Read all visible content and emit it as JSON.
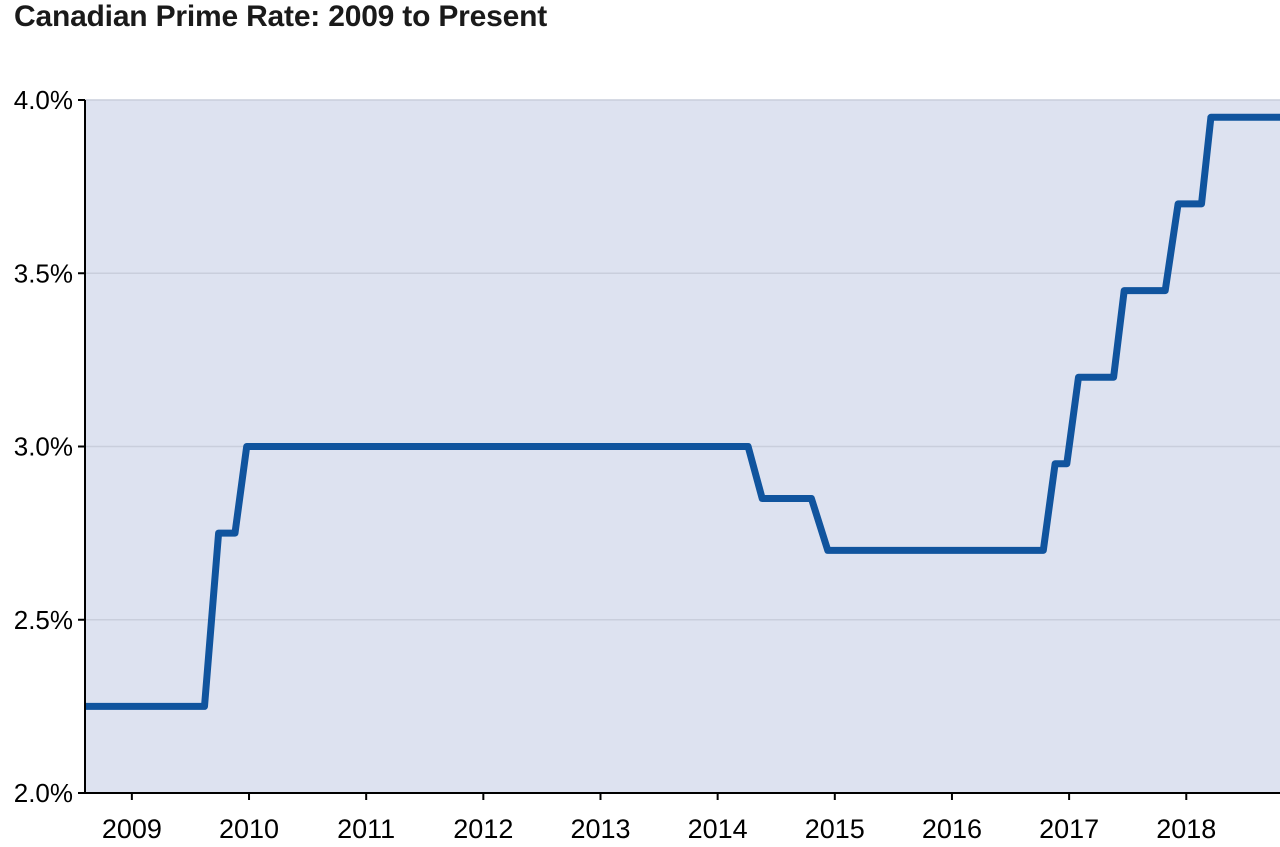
{
  "page": {
    "title": "Canadian Prime Rate: 2009 to Present"
  },
  "chart_data": {
    "type": "line",
    "title": "Canadian Prime Rate: 2009 to Present",
    "xlabel": "",
    "ylabel": "",
    "xlim": [
      2008.6,
      2018.8
    ],
    "ylim": [
      2.0,
      4.0
    ],
    "x_ticks": [
      2009,
      2010,
      2011,
      2012,
      2013,
      2014,
      2015,
      2016,
      2017,
      2018
    ],
    "y_ticks": [
      2.0,
      2.5,
      3.0,
      3.5,
      4.0
    ],
    "y_tick_labels": [
      "2.0%",
      "2.5%",
      "3.0%",
      "3.5%",
      "4.0%"
    ],
    "grid": "horizontal",
    "legend": "none",
    "colors": {
      "line": "#10549E",
      "plot_bg": "#DDE2F0",
      "grid": "#C9CEDC",
      "axis": "#000000",
      "text": "#000000",
      "title": "#1A1A1A"
    },
    "line_width": 7,
    "series": [
      {
        "name": "Canadian Prime Rate",
        "step": true,
        "points": [
          [
            2008.6,
            2.25
          ],
          [
            2009.62,
            2.25
          ],
          [
            2009.74,
            2.75
          ],
          [
            2009.88,
            2.75
          ],
          [
            2009.98,
            3.0
          ],
          [
            2014.26,
            3.0
          ],
          [
            2014.38,
            2.85
          ],
          [
            2014.8,
            2.85
          ],
          [
            2014.94,
            2.7
          ],
          [
            2016.78,
            2.7
          ],
          [
            2016.88,
            2.95
          ],
          [
            2016.98,
            2.95
          ],
          [
            2017.08,
            3.2
          ],
          [
            2017.38,
            3.2
          ],
          [
            2017.47,
            3.45
          ],
          [
            2017.82,
            3.45
          ],
          [
            2017.93,
            3.7
          ],
          [
            2018.13,
            3.7
          ],
          [
            2018.21,
            3.95
          ],
          [
            2018.8,
            3.95
          ]
        ]
      }
    ]
  }
}
